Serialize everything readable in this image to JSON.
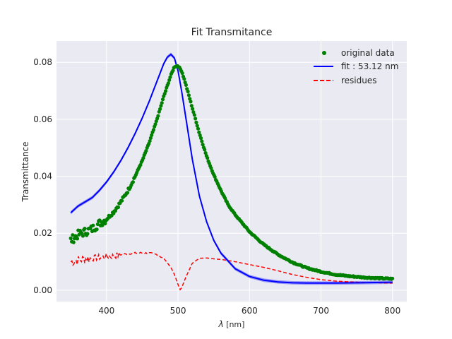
{
  "chart_data": {
    "type": "line",
    "title": "Fit Transmitance",
    "xlabel_symbol": "λ",
    "xlabel_unit": " [nm]",
    "ylabel": "Transmittance",
    "xlim": [
      330,
      820
    ],
    "ylim": [
      -0.004,
      0.0875
    ],
    "x_ticks": [
      400,
      500,
      600,
      700,
      800
    ],
    "y_ticks": [
      0.0,
      0.02,
      0.04,
      0.06,
      0.08
    ],
    "y_tick_labels": [
      "0.00",
      "0.02",
      "0.04",
      "0.06",
      "0.08"
    ],
    "grid": true,
    "legend_position": "top-right",
    "colors": {
      "original": "#008000",
      "fit": "#0000ff",
      "residues": "#ff0000",
      "background": "#eaeaf2",
      "grid": "#ffffff"
    },
    "series": [
      {
        "name": "original data",
        "style": "points",
        "x": [
          350,
          360,
          370,
          380,
          390,
          400,
          410,
          420,
          430,
          440,
          450,
          460,
          470,
          480,
          490,
          495,
          500,
          505,
          510,
          520,
          530,
          540,
          550,
          560,
          570,
          580,
          600,
          620,
          640,
          660,
          680,
          700,
          720,
          740,
          760,
          780,
          800
        ],
        "y": [
          0.0175,
          0.0195,
          0.0205,
          0.0215,
          0.0235,
          0.025,
          0.0275,
          0.031,
          0.035,
          0.04,
          0.0455,
          0.052,
          0.0595,
          0.068,
          0.0755,
          0.0785,
          0.0788,
          0.077,
          0.073,
          0.064,
          0.055,
          0.047,
          0.0405,
          0.035,
          0.03,
          0.0265,
          0.0205,
          0.016,
          0.0125,
          0.0098,
          0.0078,
          0.0065,
          0.0055,
          0.0049,
          0.0045,
          0.0042,
          0.004
        ]
      },
      {
        "name": "fit : 53.12 nm",
        "style": "line",
        "x": [
          350,
          360,
          370,
          380,
          390,
          400,
          410,
          420,
          430,
          440,
          450,
          460,
          470,
          480,
          485,
          490,
          495,
          500,
          505,
          510,
          520,
          530,
          540,
          550,
          560,
          580,
          600,
          620,
          640,
          660,
          680,
          700,
          720,
          750,
          800
        ],
        "y": [
          0.0272,
          0.0295,
          0.031,
          0.0325,
          0.035,
          0.038,
          0.0415,
          0.0455,
          0.05,
          0.055,
          0.0605,
          0.0665,
          0.073,
          0.0795,
          0.0818,
          0.0828,
          0.0815,
          0.077,
          0.07,
          0.062,
          0.046,
          0.033,
          0.024,
          0.0175,
          0.013,
          0.0075,
          0.0048,
          0.0035,
          0.0029,
          0.0026,
          0.0025,
          0.0025,
          0.0025,
          0.0026,
          0.0028
        ]
      },
      {
        "name": "residues",
        "style": "dashed",
        "x": [
          350,
          360,
          370,
          380,
          390,
          400,
          410,
          420,
          430,
          440,
          450,
          460,
          470,
          480,
          490,
          495,
          500,
          503,
          505,
          510,
          520,
          530,
          540,
          550,
          560,
          580,
          600,
          620,
          640,
          660,
          680,
          700,
          720,
          740,
          760,
          780,
          800
        ],
        "y": [
          0.01,
          0.0105,
          0.011,
          0.0112,
          0.0115,
          0.0118,
          0.012,
          0.0125,
          0.0128,
          0.013,
          0.0131,
          0.013,
          0.0125,
          0.0112,
          0.008,
          0.0055,
          0.002,
          0.0002,
          0.0008,
          0.004,
          0.0095,
          0.0112,
          0.0113,
          0.011,
          0.0108,
          0.01,
          0.009,
          0.008,
          0.0068,
          0.0055,
          0.0045,
          0.0037,
          0.0032,
          0.0029,
          0.0027,
          0.0026,
          0.0025
        ]
      }
    ]
  }
}
